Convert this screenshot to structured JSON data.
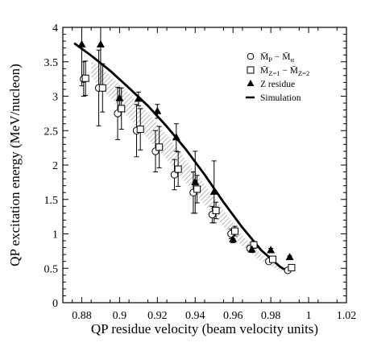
{
  "chart_data": {
    "type": "scatter",
    "xlabel": "QP residue velocity (beam velocity units)",
    "ylabel": "QP excitation energy (MeV/nucleon)",
    "xlim": [
      0.87,
      1.02
    ],
    "ylim": [
      0,
      4
    ],
    "x_ticks": [
      0.88,
      0.9,
      0.92,
      0.94,
      0.96,
      0.98,
      1,
      1.02
    ],
    "x_tick_labels": [
      "0.88",
      "0.9",
      "0.92",
      "0.94",
      "0.96",
      "0.98",
      "1",
      "1.02"
    ],
    "y_ticks": [
      0,
      0.5,
      1,
      1.5,
      2,
      2.5,
      3,
      3.5,
      4
    ],
    "y_tick_labels": [
      "0",
      "0.5",
      "1",
      "1.5",
      "2",
      "2.5",
      "3",
      "3.5",
      "4"
    ],
    "legend_position": "top-right",
    "legend": [
      {
        "marker": "circle",
        "label_main": "M̄",
        "label_sub1": "P",
        "label_mid": " − M̄",
        "label_sub2": "α"
      },
      {
        "marker": "square",
        "label_main": "M̄",
        "label_sub1": "Z=1",
        "label_mid": " − M̄",
        "label_sub2": "Z=2"
      },
      {
        "marker": "triangle",
        "label": "Z residue"
      },
      {
        "marker": "line",
        "label": "Simulation"
      }
    ],
    "series": [
      {
        "marker": "circle",
        "points": [
          {
            "x": 0.881,
            "y": 3.25,
            "err": 0.25
          },
          {
            "x": 0.889,
            "y": 3.12,
            "err": 0.55
          },
          {
            "x": 0.899,
            "y": 2.75,
            "err": 0.38
          },
          {
            "x": 0.909,
            "y": 2.5,
            "err": 0.38
          },
          {
            "x": 0.919,
            "y": 2.2,
            "err": 0.3
          },
          {
            "x": 0.929,
            "y": 1.86,
            "err": 0.22
          },
          {
            "x": 0.939,
            "y": 1.6,
            "err": 0.3
          },
          {
            "x": 0.949,
            "y": 1.28,
            "err": 0.12
          },
          {
            "x": 0.959,
            "y": 1.0,
            "err": 0.07
          },
          {
            "x": 0.969,
            "y": 0.79,
            "err": 0.04
          },
          {
            "x": 0.979,
            "y": 0.6,
            "err": 0.03
          },
          {
            "x": 0.989,
            "y": 0.47,
            "err": 0.02
          }
        ]
      },
      {
        "marker": "square",
        "points": [
          {
            "x": 0.882,
            "y": 3.26,
            "err": 0.25
          },
          {
            "x": 0.891,
            "y": 3.12,
            "err": 0.35
          },
          {
            "x": 0.901,
            "y": 2.82,
            "err": 0.3
          },
          {
            "x": 0.911,
            "y": 2.52,
            "err": 0.3
          },
          {
            "x": 0.921,
            "y": 2.26,
            "err": 0.3
          },
          {
            "x": 0.931,
            "y": 1.94,
            "err": 0.25
          },
          {
            "x": 0.941,
            "y": 1.65,
            "err": 0.2
          },
          {
            "x": 0.951,
            "y": 1.34,
            "err": 0.12
          },
          {
            "x": 0.961,
            "y": 1.04,
            "err": 0.07
          },
          {
            "x": 0.971,
            "y": 0.84,
            "err": 0.05
          },
          {
            "x": 0.981,
            "y": 0.63,
            "err": 0.03
          },
          {
            "x": 0.991,
            "y": 0.51,
            "err": 0.02
          }
        ]
      },
      {
        "marker": "triangle",
        "points": [
          {
            "x": 0.88,
            "y": 3.75,
            "err": 0.6
          },
          {
            "x": 0.89,
            "y": 3.75,
            "err": 0.6
          },
          {
            "x": 0.9,
            "y": 2.97,
            "err": 0.15
          },
          {
            "x": 0.91,
            "y": 2.96,
            "err": 0.1
          },
          {
            "x": 0.92,
            "y": 2.78,
            "err": 0.1
          },
          {
            "x": 0.93,
            "y": 2.4,
            "err": 0.2
          },
          {
            "x": 0.94,
            "y": 1.75,
            "err": 0.45
          },
          {
            "x": 0.95,
            "y": 1.61,
            "err": 0.45
          },
          {
            "x": 0.96,
            "y": 0.92,
            "err": 0.05
          },
          {
            "x": 0.97,
            "y": 0.77,
            "err": 0.04
          },
          {
            "x": 0.98,
            "y": 0.76,
            "err": 0.03
          },
          {
            "x": 0.99,
            "y": 0.66,
            "err": 0.02
          }
        ]
      }
    ],
    "simulation_line": {
      "x": [
        0.876,
        0.885,
        0.895,
        0.905,
        0.915,
        0.925,
        0.935,
        0.945,
        0.955,
        0.965,
        0.975,
        0.985,
        0.99
      ],
      "y": [
        3.77,
        3.59,
        3.37,
        3.12,
        2.86,
        2.56,
        2.23,
        1.86,
        1.46,
        1.09,
        0.76,
        0.52,
        0.44
      ]
    },
    "shaded_band": {
      "upper": {
        "x": [
          0.885,
          0.895,
          0.905,
          0.915,
          0.925,
          0.935,
          0.945,
          0.955,
          0.965,
          0.975,
          0.985,
          0.99
        ],
        "y": [
          3.52,
          3.3,
          3.04,
          2.76,
          2.44,
          2.08,
          1.72,
          1.34,
          0.98,
          0.7,
          0.5,
          0.42
        ]
      },
      "lower": {
        "x": [
          0.885,
          0.895,
          0.905,
          0.915,
          0.925,
          0.935,
          0.945,
          0.955,
          0.965,
          0.975,
          0.985,
          0.99
        ],
        "y": [
          3.28,
          2.98,
          2.68,
          2.38,
          2.08,
          1.74,
          1.42,
          1.1,
          0.82,
          0.6,
          0.46,
          0.42
        ]
      }
    }
  }
}
